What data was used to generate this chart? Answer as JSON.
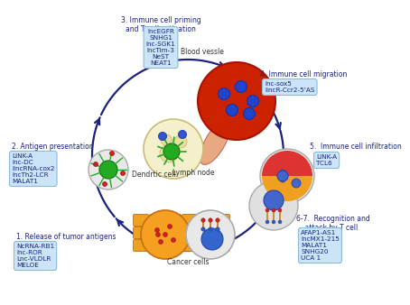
{
  "bg_color": "#ffffff",
  "text_box_color": "#cce4f7",
  "text_box_edge": "#88bbdd",
  "arrow_color": "#1a237e",
  "labels": {
    "step1": "1. Release of tumor antigens",
    "step1_genes": "NcRNA-RB1\nlnc-ROR\nLnc-VLDLR\nMELOE",
    "step2": "2. Antigen presentation",
    "step2_genes": "LINK-A\nlnc-DC\nlincRNA-cox2\nlncTh2-LCR\nMALAT1",
    "step3": "3. Immune cell priming\nand T cell activation",
    "step3_genes": "lncEGFR\nSNHG1\nlnc-SGK1\nlncTim-3\nNeST\nNEAT1",
    "step4": "4. Immune cell migration",
    "step4_genes": "lnc-sox5\nlincR-Ccr2-5'AS",
    "step5": "5.  Immune cell infiltration",
    "step5_genes": "LINK-A\nTCL6",
    "step67": "6-7.  Recognition and\n    attack by T cell",
    "step67_genes": "AFAP1-AS1\nlncMX1-215\nMALAT1\nSNHG20\nUCA 1",
    "blood_vessel": "Blood vessle",
    "lymph_node": "Lymph node",
    "dendritic": "Dendrtic cell",
    "cancer": "Cancer cells"
  }
}
